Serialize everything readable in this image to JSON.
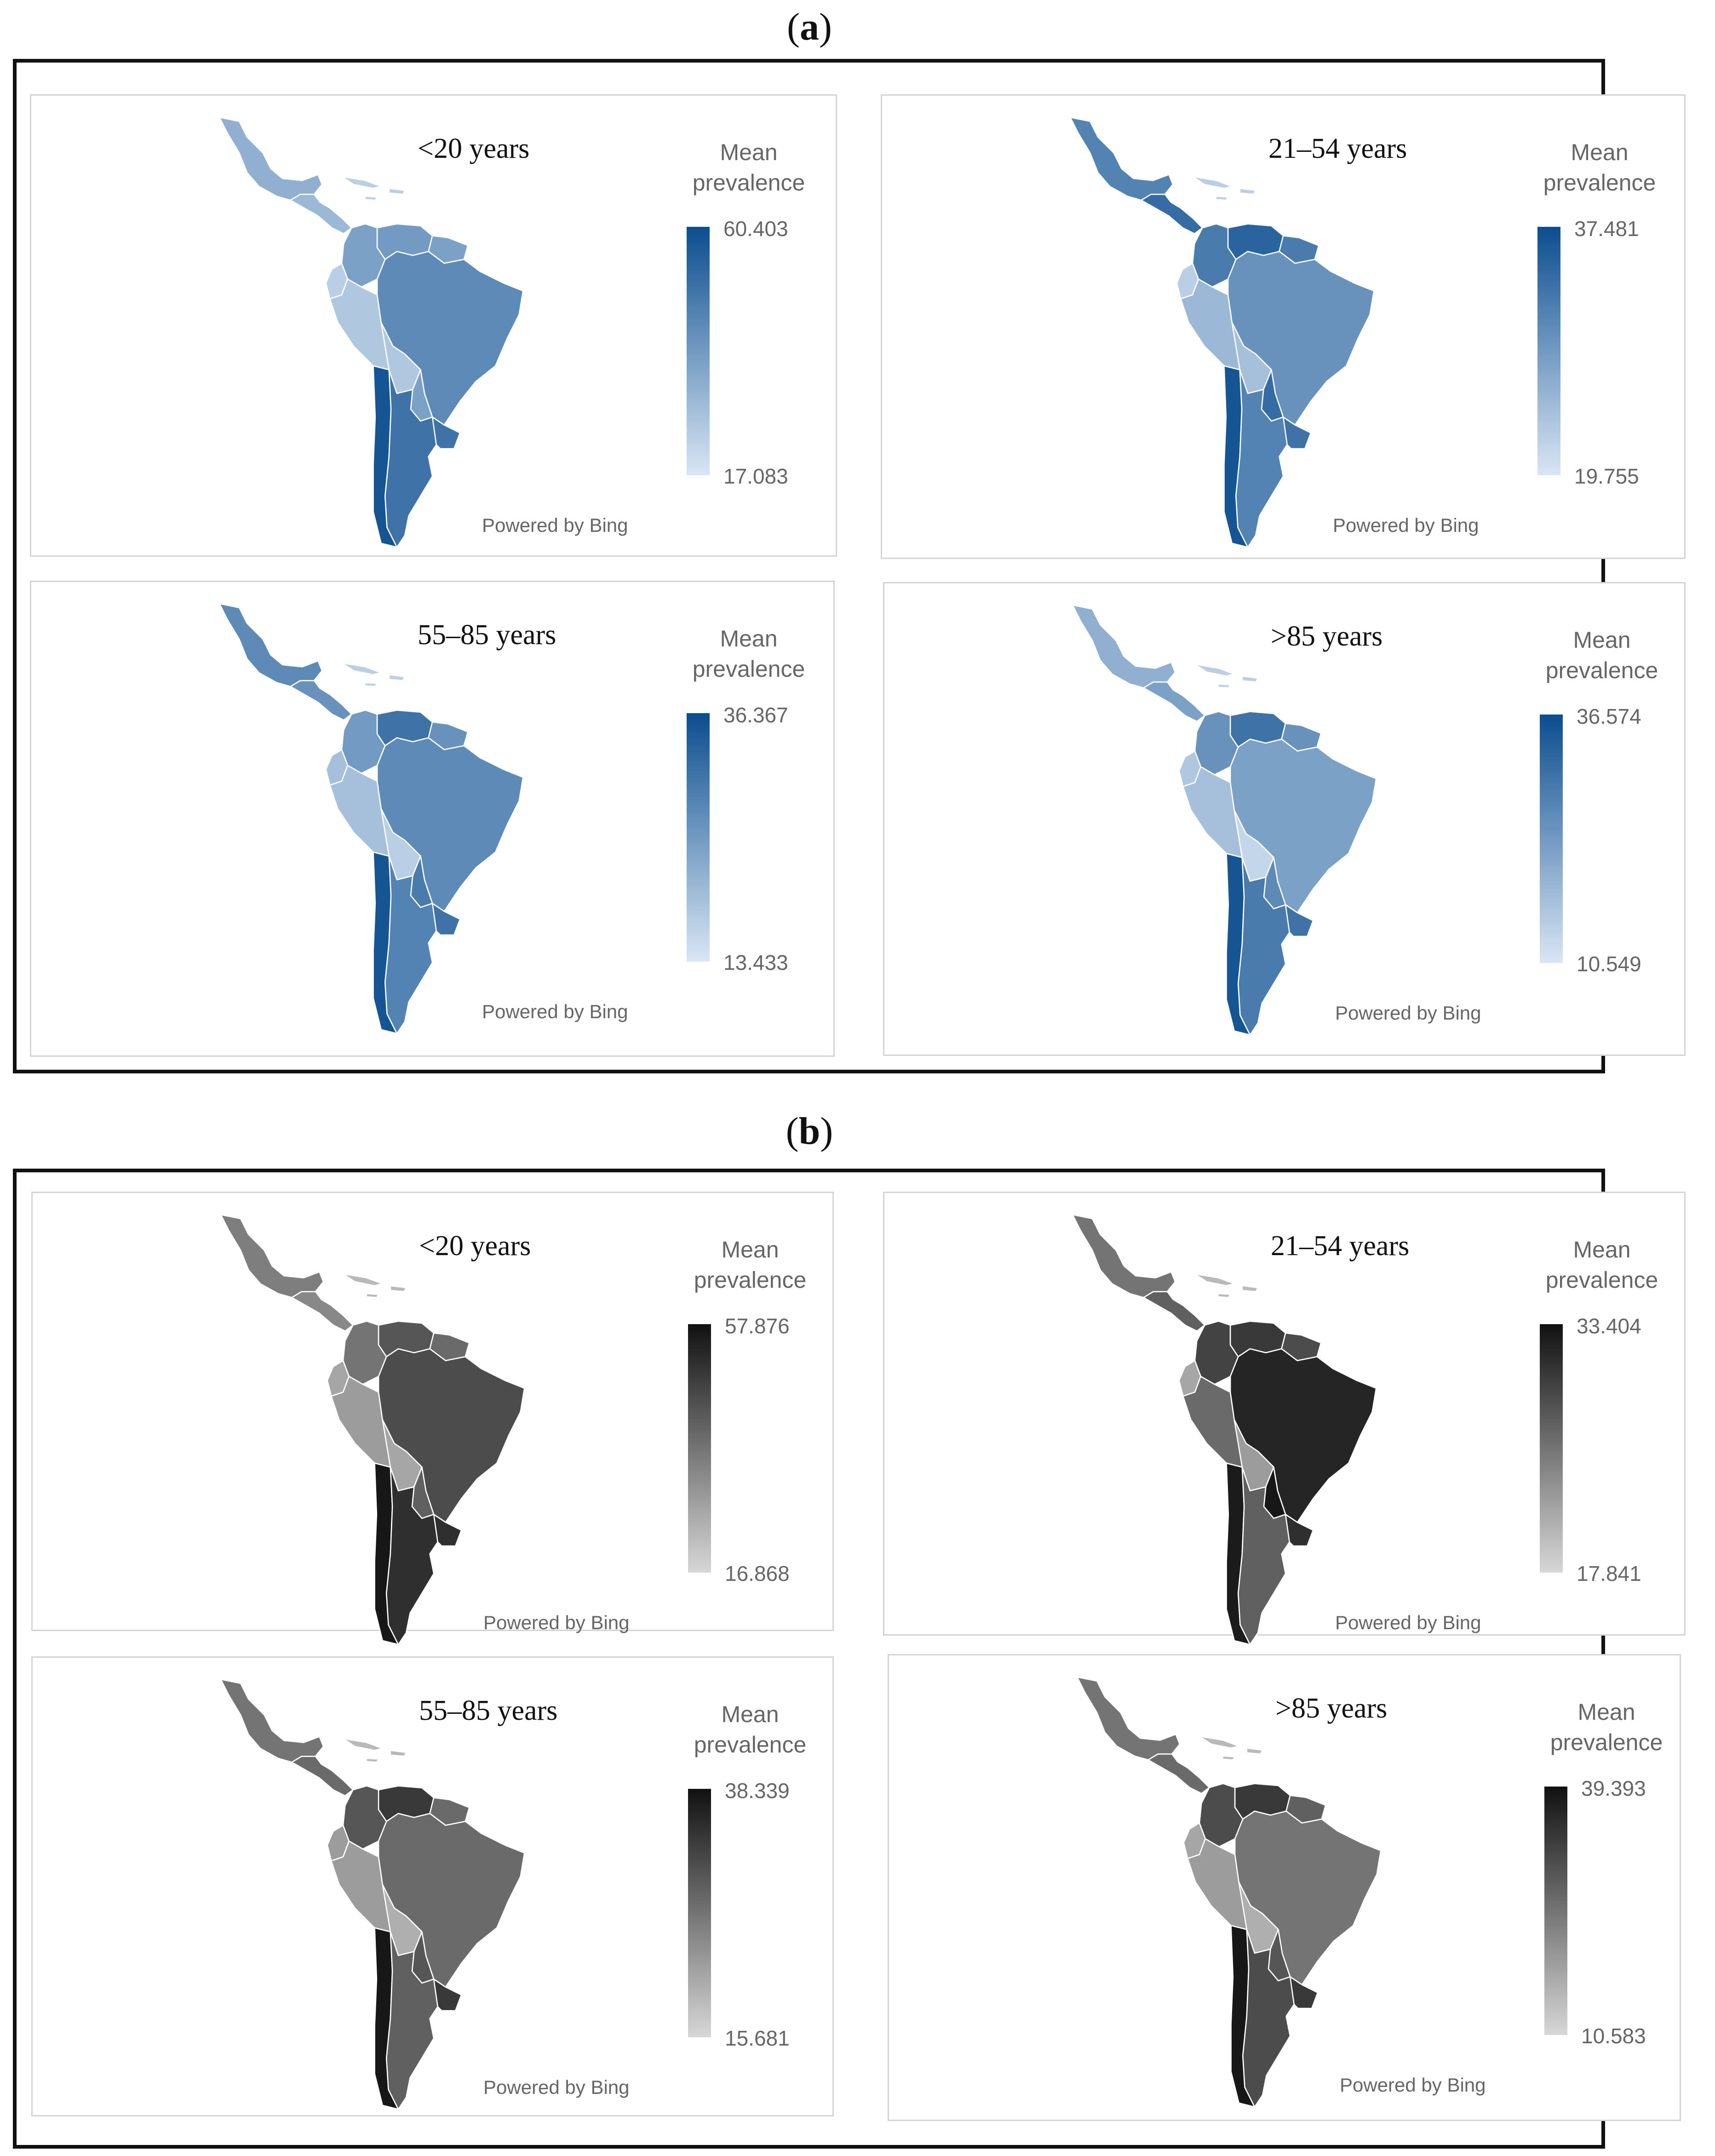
{
  "figure": {
    "section_a": {
      "label": "a",
      "paren_open": "(",
      "paren_close": ")"
    },
    "section_b": {
      "label": "b",
      "paren_open": "(",
      "paren_close": ")"
    }
  },
  "legend_title": "Mean\nprevalence",
  "credit": "Powered by Bing",
  "colors": {
    "blue_high": "#0b4d8f",
    "blue_low": "#d9e6f4",
    "gray_high": "#111111",
    "gray_low": "#d7d7d7"
  },
  "panels": [
    {
      "section": "a",
      "title": "<20 years",
      "legend_max": "60.403",
      "legend_min": "17.083",
      "ramp": "blue",
      "values": {
        "mexico": 0.35,
        "central_america": 0.3,
        "colombia": 0.45,
        "venezuela": 0.5,
        "guianas": 0.45,
        "ecuador": 0.15,
        "peru": 0.2,
        "brazil": 0.6,
        "bolivia": 0.2,
        "paraguay": 0.45,
        "chile": 0.95,
        "argentina": 0.75,
        "uruguay": 0.75
      }
    },
    {
      "section": "a",
      "title": "21–54 years",
      "legend_max": "37.481",
      "legend_min": "19.755",
      "ramp": "blue",
      "values": {
        "mexico": 0.65,
        "central_america": 0.8,
        "colombia": 0.7,
        "venezuela": 0.85,
        "guianas": 0.7,
        "ecuador": 0.15,
        "peru": 0.3,
        "brazil": 0.55,
        "bolivia": 0.25,
        "paraguay": 0.8,
        "chile": 0.95,
        "argentina": 0.65,
        "uruguay": 0.75
      }
    },
    {
      "section": "a",
      "title": "55–85 years",
      "legend_max": "36.367",
      "legend_min": "13.433",
      "ramp": "blue",
      "values": {
        "mexico": 0.6,
        "central_america": 0.55,
        "colombia": 0.5,
        "venezuela": 0.75,
        "guianas": 0.55,
        "ecuador": 0.25,
        "peru": 0.25,
        "brazil": 0.6,
        "bolivia": 0.15,
        "paraguay": 0.7,
        "chile": 0.95,
        "argentina": 0.65,
        "uruguay": 0.75
      }
    },
    {
      "section": "a",
      "title": ">85 years",
      "legend_max": "36.574",
      "legend_min": "10.549",
      "ramp": "blue",
      "values": {
        "mexico": 0.35,
        "central_america": 0.45,
        "colombia": 0.55,
        "venezuela": 0.75,
        "guianas": 0.55,
        "ecuador": 0.2,
        "peru": 0.25,
        "brazil": 0.45,
        "bolivia": 0.1,
        "paraguay": 0.6,
        "chile": 0.95,
        "argentina": 0.7,
        "uruguay": 0.75
      }
    },
    {
      "section": "b",
      "title": "<20 years",
      "legend_max": "57.876",
      "legend_min": "16.868",
      "ramp": "gray",
      "values": {
        "mexico": 0.45,
        "central_america": 0.4,
        "colombia": 0.5,
        "venezuela": 0.65,
        "guianas": 0.55,
        "ecuador": 0.25,
        "peru": 0.3,
        "brazil": 0.7,
        "bolivia": 0.25,
        "paraguay": 0.6,
        "chile": 0.97,
        "argentina": 0.85,
        "uruguay": 0.85
      }
    },
    {
      "section": "b",
      "title": "21–54 years",
      "legend_max": "33.404",
      "legend_min": "17.841",
      "ramp": "gray",
      "values": {
        "mexico": 0.5,
        "central_america": 0.6,
        "colombia": 0.75,
        "venezuela": 0.8,
        "guianas": 0.7,
        "ecuador": 0.25,
        "peru": 0.55,
        "brazil": 0.9,
        "bolivia": 0.3,
        "paraguay": 0.97,
        "chile": 0.95,
        "argentina": 0.6,
        "uruguay": 0.85
      }
    },
    {
      "section": "b",
      "title": "55–85 years",
      "legend_max": "38.339",
      "legend_min": "15.681",
      "ramp": "gray",
      "values": {
        "mexico": 0.5,
        "central_america": 0.55,
        "colombia": 0.65,
        "venezuela": 0.8,
        "guianas": 0.55,
        "ecuador": 0.3,
        "peru": 0.3,
        "brazil": 0.55,
        "bolivia": 0.2,
        "paraguay": 0.65,
        "chile": 0.97,
        "argentina": 0.6,
        "uruguay": 0.8
      }
    },
    {
      "section": "b",
      "title": ">85 years",
      "legend_max": "39.393",
      "legend_min": "10.583",
      "ramp": "gray",
      "values": {
        "mexico": 0.5,
        "central_america": 0.55,
        "colombia": 0.7,
        "venezuela": 0.8,
        "guianas": 0.6,
        "ecuador": 0.25,
        "peru": 0.3,
        "brazil": 0.5,
        "bolivia": 0.2,
        "paraguay": 0.65,
        "chile": 0.97,
        "argentina": 0.7,
        "uruguay": 0.8
      }
    }
  ]
}
